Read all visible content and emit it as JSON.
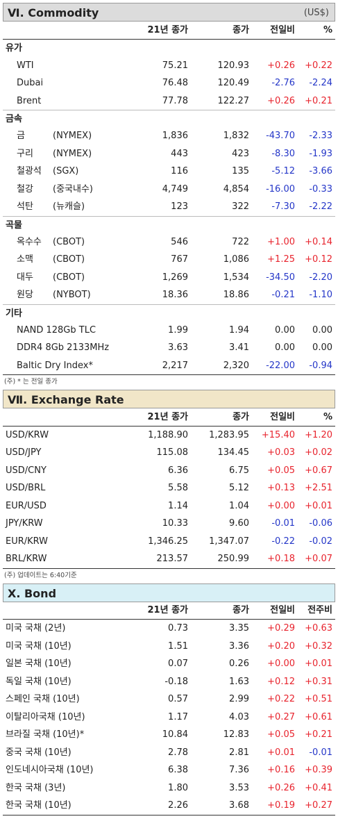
{
  "commodity": {
    "title": "Ⅵ. Commodity",
    "unit": "(US$)",
    "headers": [
      "21년 종가",
      "종가",
      "전일비",
      "%"
    ],
    "groups": [
      {
        "name": "유가",
        "items": [
          {
            "name": "WTI",
            "ex": "",
            "y21": "75.21",
            "close": "120.93",
            "chg": "+0.26",
            "pct": "+0.22"
          },
          {
            "name": "Dubai",
            "ex": "",
            "y21": "76.48",
            "close": "120.49",
            "chg": "-2.76",
            "pct": "-2.24"
          },
          {
            "name": "Brent",
            "ex": "",
            "y21": "77.78",
            "close": "122.27",
            "chg": "+0.26",
            "pct": "+0.21"
          }
        ]
      },
      {
        "name": "금속",
        "items": [
          {
            "name": "금",
            "ex": "(NYMEX)",
            "y21": "1,836",
            "close": "1,832",
            "chg": "-43.70",
            "pct": "-2.33"
          },
          {
            "name": "구리",
            "ex": "(NYMEX)",
            "y21": "443",
            "close": "423",
            "chg": "-8.30",
            "pct": "-1.93"
          },
          {
            "name": "철광석",
            "ex": "(SGX)",
            "y21": "116",
            "close": "135",
            "chg": "-5.12",
            "pct": "-3.66"
          },
          {
            "name": "철강",
            "ex": "(중국내수)",
            "y21": "4,749",
            "close": "4,854",
            "chg": "-16.00",
            "pct": "-0.33"
          },
          {
            "name": "석탄",
            "ex": "(뉴캐슬)",
            "y21": "123",
            "close": "322",
            "chg": "-7.30",
            "pct": "-2.22"
          }
        ]
      },
      {
        "name": "곡물",
        "items": [
          {
            "name": "옥수수",
            "ex": "(CBOT)",
            "y21": "546",
            "close": "722",
            "chg": "+1.00",
            "pct": "+0.14"
          },
          {
            "name": "소맥",
            "ex": "(CBOT)",
            "y21": "767",
            "close": "1,086",
            "chg": "+1.25",
            "pct": "+0.12"
          },
          {
            "name": "대두",
            "ex": "(CBOT)",
            "y21": "1,269",
            "close": "1,534",
            "chg": "-34.50",
            "pct": "-2.20"
          },
          {
            "name": "원당",
            "ex": "(NYBOT)",
            "y21": "18.36",
            "close": "18.86",
            "chg": "-0.21",
            "pct": "-1.10"
          }
        ]
      },
      {
        "name": "기타",
        "items": [
          {
            "name": "NAND 128Gb TLC",
            "ex": "",
            "y21": "1.99",
            "close": "1.94",
            "chg": "0.00",
            "pct": "0.00"
          },
          {
            "name": "DDR4 8Gb 2133MHz",
            "ex": "",
            "y21": "3.63",
            "close": "3.41",
            "chg": "0.00",
            "pct": "0.00"
          },
          {
            "name": "Baltic Dry Index*",
            "ex": "",
            "y21": "2,217",
            "close": "2,320",
            "chg": "-22.00",
            "pct": "-0.94"
          }
        ]
      }
    ],
    "note": "(주) * 는 전일 종가"
  },
  "exchange": {
    "title": "Ⅶ. Exchange Rate",
    "headers": [
      "21년 종가",
      "종가",
      "전일비",
      "%"
    ],
    "items": [
      {
        "name": "USD/KRW",
        "y21": "1,188.90",
        "close": "1,283.95",
        "chg": "+15.40",
        "pct": "+1.20"
      },
      {
        "name": "USD/JPY",
        "y21": "115.08",
        "close": "134.45",
        "chg": "+0.03",
        "pct": "+0.02"
      },
      {
        "name": "USD/CNY",
        "y21": "6.36",
        "close": "6.75",
        "chg": "+0.05",
        "pct": "+0.67"
      },
      {
        "name": "USD/BRL",
        "y21": "5.58",
        "close": "5.12",
        "chg": "+0.13",
        "pct": "+2.51"
      },
      {
        "name": "EUR/USD",
        "y21": "1.14",
        "close": "1.04",
        "chg": "+0.00",
        "pct": "+0.01"
      },
      {
        "name": "JPY/KRW",
        "y21": "10.33",
        "close": "9.60",
        "chg": "-0.01",
        "pct": "-0.06"
      },
      {
        "name": "EUR/KRW",
        "y21": "1,346.25",
        "close": "1,347.07",
        "chg": "-0.22",
        "pct": "-0.02"
      },
      {
        "name": "BRL/KRW",
        "y21": "213.57",
        "close": "250.99",
        "chg": "+0.18",
        "pct": "+0.07"
      }
    ],
    "note": "(주) 업데이트는 6:40기준"
  },
  "bond": {
    "title": "X. Bond",
    "headers": [
      "21년 종가",
      "종가",
      "전일비",
      "전주비"
    ],
    "items": [
      {
        "name": "미국 국채 (2년)",
        "y21": "0.73",
        "close": "3.35",
        "chg": "+0.29",
        "pct": "+0.63"
      },
      {
        "name": "미국 국채 (10년)",
        "y21": "1.51",
        "close": "3.36",
        "chg": "+0.20",
        "pct": "+0.32"
      },
      {
        "name": "일본 국채 (10년)",
        "y21": "0.07",
        "close": "0.26",
        "chg": "+0.00",
        "pct": "+0.01"
      },
      {
        "name": "독일 국채 (10년)",
        "y21": "-0.18",
        "close": "1.63",
        "chg": "+0.12",
        "pct": "+0.31"
      },
      {
        "name": "스페인 국채 (10년)",
        "y21": "0.57",
        "close": "2.99",
        "chg": "+0.22",
        "pct": "+0.51"
      },
      {
        "name": "이탈리아국채 (10년)",
        "y21": "1.17",
        "close": "4.03",
        "chg": "+0.27",
        "pct": "+0.61"
      },
      {
        "name": "브라질 국채 (10년)*",
        "y21": "10.84",
        "close": "12.83",
        "chg": "+0.05",
        "pct": "+0.21"
      },
      {
        "name": "중국 국채 (10년)",
        "y21": "2.78",
        "close": "2.81",
        "chg": "+0.01",
        "pct": "-0.01"
      },
      {
        "name": "인도네시아국채 (10년)",
        "y21": "6.38",
        "close": "7.36",
        "chg": "+0.16",
        "pct": "+0.39"
      },
      {
        "name": "한국 국채 (3년)",
        "y21": "1.80",
        "close": "3.53",
        "chg": "+0.26",
        "pct": "+0.41"
      },
      {
        "name": "한국 국채 (10년)",
        "y21": "2.26",
        "close": "3.68",
        "chg": "+0.19",
        "pct": "+0.27"
      }
    ]
  }
}
